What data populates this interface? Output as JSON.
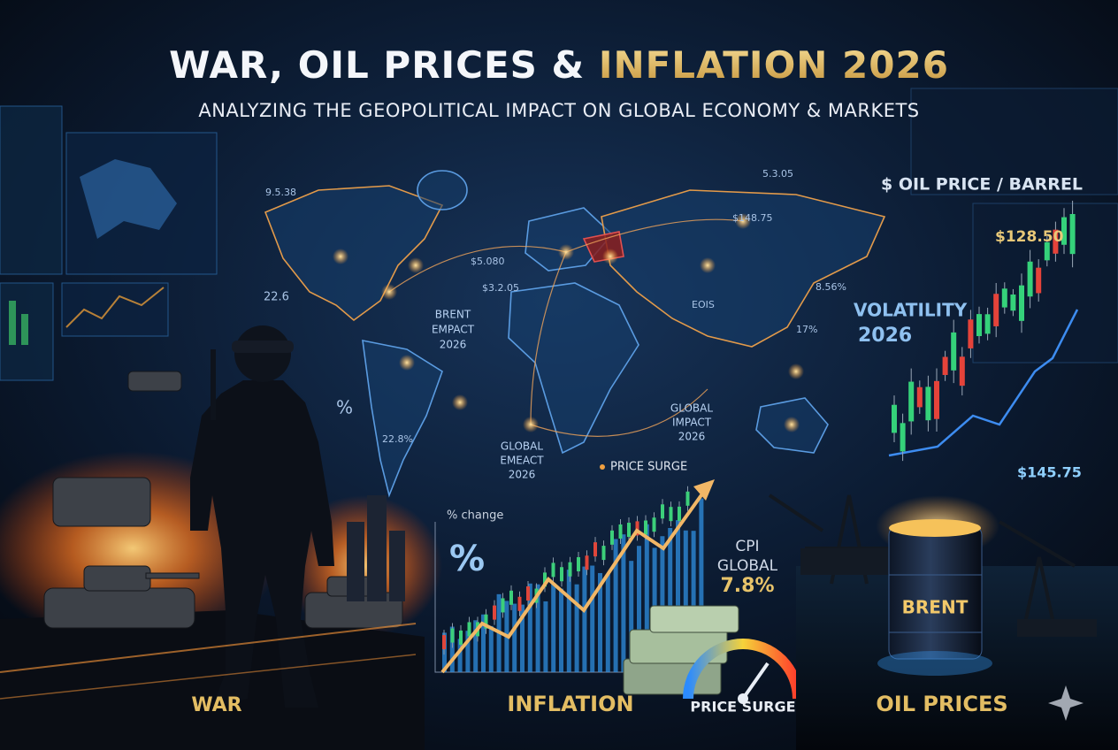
{
  "header": {
    "title_main": "WAR, OIL PRICES & ",
    "title_accent": "INFLATION 2026",
    "subtitle": "ANALYZING THE GEOPOLITICAL IMPACT ON GLOBAL ECONOMY & MARKETS"
  },
  "map": {
    "labels": [
      "9.5.38",
      "5.3.05",
      "$148.75",
      "$5.080",
      "$3.2.05",
      "22.6",
      "8.56%",
      "EOIS",
      "17%",
      "%",
      "22.8%",
      "PRICE SURGE"
    ],
    "brent_impact": [
      "BRENT",
      "EMPACT",
      "2026"
    ],
    "global_impact": [
      "GLOBAL",
      "IMPACT",
      "2026"
    ],
    "global_emeact": [
      "GLOBAL",
      "EMEACT",
      "2026"
    ]
  },
  "oil_panel": {
    "title": "$ OIL PRICE / BARREL",
    "price_high": "$128.50",
    "volatility": [
      "VOLATILITY",
      "2026"
    ],
    "price_low": "$145.75",
    "barrel_label": "BRENT"
  },
  "inflation_panel": {
    "axis_label": "% change",
    "percent_sign": "%",
    "cpi": [
      "CPI",
      "GLOBAL",
      "7.8%"
    ]
  },
  "sections": [
    "WAR",
    "INFLATION",
    "PRICE SURGE",
    "OIL PRICES"
  ]
}
